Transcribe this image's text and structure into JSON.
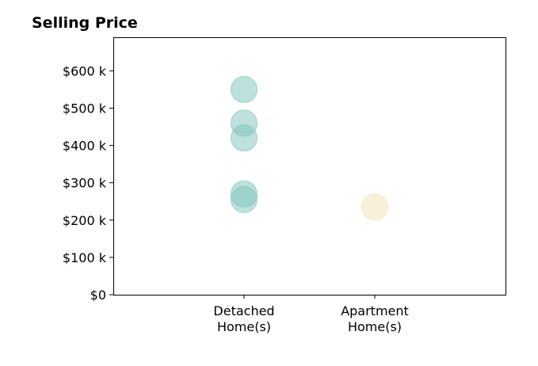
{
  "chart_data": {
    "type": "scatter",
    "title": "Selling Price",
    "xlabel": "",
    "ylabel": "",
    "categories": [
      [
        "Detached",
        "Home(s)"
      ],
      [
        "Apartment",
        "Home(s)"
      ]
    ],
    "xlim": [
      -1,
      2
    ],
    "ylim": [
      0,
      690000
    ],
    "y_ticks": [
      0,
      100000,
      200000,
      300000,
      400000,
      500000,
      600000
    ],
    "y_tick_labels": [
      "$0",
      "$100 k",
      "$200 k",
      "$300 k",
      "$400 k",
      "$500 k",
      "$600 k"
    ],
    "grid": false,
    "series": [
      {
        "category_index": 0,
        "color": "#7ec4bc",
        "values": [
          550000,
          460000,
          420000,
          270000,
          255000
        ]
      },
      {
        "category_index": 1,
        "color": "#f6e2b6",
        "values": [
          235000
        ]
      }
    ]
  }
}
